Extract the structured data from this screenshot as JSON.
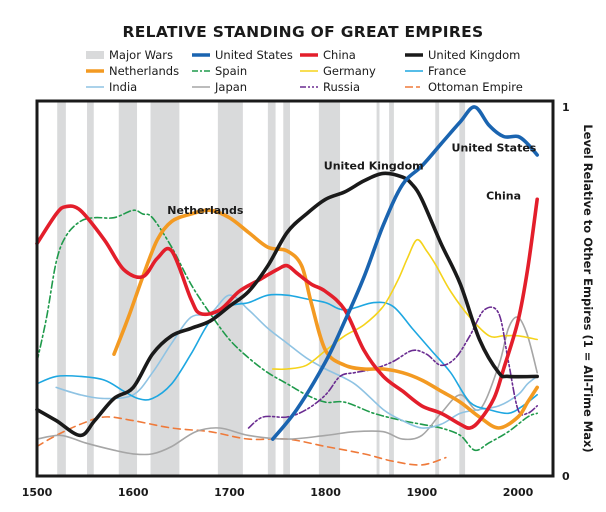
{
  "chart_data": {
    "type": "line",
    "title": "RELATIVE STANDING OF GREAT EMPIRES",
    "xlabel": "",
    "ylabel": "Level Relative to Other Empires (1 = All-Time Max)",
    "xlim": [
      1500,
      2030
    ],
    "ylim": [
      0,
      1
    ],
    "x_ticks": [
      1500,
      1600,
      1700,
      1800,
      1900,
      2000
    ],
    "y_ticks": [
      {
        "value": 0,
        "label": "0"
      },
      {
        "value": 1,
        "label": "1"
      }
    ],
    "y_axis_side": "right",
    "grid": false,
    "legend_position": "top",
    "legend": [
      {
        "label": "Major Wars",
        "kind": "band",
        "color": "#d9dadb"
      },
      {
        "label": "United States",
        "color": "#1a64b0",
        "style": "solid",
        "weight": "thick"
      },
      {
        "label": "China",
        "color": "#e31e2b",
        "style": "solid",
        "weight": "thick"
      },
      {
        "label": "United Kingdom",
        "color": "#1a1a1a",
        "style": "solid",
        "weight": "thick"
      },
      {
        "label": "Netherlands",
        "color": "#f39a22",
        "style": "solid",
        "weight": "thick"
      },
      {
        "label": "Spain",
        "color": "#1f9a4b",
        "style": "dashdot",
        "weight": "thin"
      },
      {
        "label": "Germany",
        "color": "#f5d31b",
        "style": "solid",
        "weight": "thin"
      },
      {
        "label": "France",
        "color": "#1ea7e1",
        "style": "solid",
        "weight": "thin"
      },
      {
        "label": "India",
        "color": "#8fc3e3",
        "style": "solid",
        "weight": "thin"
      },
      {
        "label": "Japan",
        "color": "#a6a6a6",
        "style": "solid",
        "weight": "thin"
      },
      {
        "label": "Russia",
        "color": "#6a2c91",
        "style": "dashdotdot",
        "weight": "thin"
      },
      {
        "label": "Ottoman Empire",
        "color": "#ef7a3a",
        "style": "dashed",
        "weight": "thin"
      }
    ],
    "major_wars": [
      [
        1521,
        1530
      ],
      [
        1552,
        1559
      ],
      [
        1585,
        1604
      ],
      [
        1618,
        1648
      ],
      [
        1688,
        1714
      ],
      [
        1740,
        1748
      ],
      [
        1756,
        1763
      ],
      [
        1793,
        1815
      ],
      [
        1853,
        1856
      ],
      [
        1866,
        1871
      ],
      [
        1914,
        1918
      ],
      [
        1939,
        1945
      ]
    ],
    "annotations": [
      {
        "text": "Netherlands",
        "x": 1675,
        "y": 0.71
      },
      {
        "text": "United Kingdom",
        "x": 1850,
        "y": 0.83
      },
      {
        "text": "United States",
        "x": 1975,
        "y": 0.88
      },
      {
        "text": "China",
        "x": 1985,
        "y": 0.75
      }
    ],
    "series": [
      {
        "name": "Spain",
        "x": [
          1500,
          1510,
          1520,
          1530,
          1545,
          1560,
          1580,
          1600,
          1610,
          1620,
          1640,
          1660,
          1680,
          1700,
          1720,
          1740,
          1760,
          1780,
          1800,
          1820,
          1850,
          1880,
          1900,
          1920,
          1940,
          1955,
          1970,
          1990,
          2010,
          2020
        ],
        "y": [
          0.31,
          0.43,
          0.58,
          0.65,
          0.69,
          0.7,
          0.7,
          0.72,
          0.71,
          0.7,
          0.62,
          0.52,
          0.44,
          0.37,
          0.32,
          0.28,
          0.25,
          0.22,
          0.2,
          0.2,
          0.17,
          0.15,
          0.14,
          0.13,
          0.11,
          0.07,
          0.09,
          0.12,
          0.16,
          0.17
        ]
      },
      {
        "name": "Ottoman Empire",
        "x": [
          1500,
          1520,
          1545,
          1570,
          1600,
          1640,
          1680,
          1720,
          1760,
          1800,
          1840,
          1870,
          1900,
          1925
        ],
        "y": [
          0.08,
          0.11,
          0.14,
          0.16,
          0.15,
          0.13,
          0.12,
          0.1,
          0.1,
          0.08,
          0.06,
          0.04,
          0.03,
          0.05
        ]
      },
      {
        "name": "Japan",
        "x": [
          1500,
          1525,
          1550,
          1580,
          1600,
          1620,
          1640,
          1665,
          1690,
          1720,
          1760,
          1800,
          1830,
          1860,
          1880,
          1900,
          1920,
          1940,
          1960,
          1980,
          1990,
          2000,
          2010,
          2020
        ],
        "y": [
          0.1,
          0.11,
          0.09,
          0.07,
          0.06,
          0.06,
          0.08,
          0.12,
          0.13,
          0.11,
          0.1,
          0.11,
          0.12,
          0.12,
          0.1,
          0.11,
          0.17,
          0.22,
          0.18,
          0.3,
          0.4,
          0.43,
          0.38,
          0.28
        ]
      },
      {
        "name": "India",
        "x": [
          1520,
          1545,
          1570,
          1600,
          1620,
          1640,
          1660,
          1680,
          1700,
          1720,
          1740,
          1760,
          1780,
          1800,
          1830,
          1860,
          1880,
          1900,
          1920,
          1940,
          1960,
          1980,
          2000,
          2010,
          2020
        ],
        "y": [
          0.24,
          0.22,
          0.21,
          0.22,
          0.28,
          0.36,
          0.43,
          0.44,
          0.49,
          0.45,
          0.4,
          0.36,
          0.32,
          0.29,
          0.25,
          0.18,
          0.15,
          0.13,
          0.14,
          0.17,
          0.18,
          0.19,
          0.22,
          0.25,
          0.27
        ]
      },
      {
        "name": "France",
        "x": [
          1500,
          1520,
          1545,
          1570,
          1590,
          1605,
          1620,
          1640,
          1660,
          1680,
          1700,
          1720,
          1740,
          1760,
          1780,
          1800,
          1820,
          1850,
          1870,
          1890,
          1910,
          1930,
          1950,
          1970,
          1990,
          2005,
          2020
        ],
        "y": [
          0.25,
          0.27,
          0.27,
          0.26,
          0.23,
          0.21,
          0.21,
          0.25,
          0.33,
          0.42,
          0.46,
          0.47,
          0.49,
          0.49,
          0.48,
          0.47,
          0.45,
          0.47,
          0.46,
          0.4,
          0.34,
          0.28,
          0.2,
          0.18,
          0.17,
          0.19,
          0.22
        ]
      },
      {
        "name": "Germany",
        "x": [
          1745,
          1760,
          1780,
          1800,
          1820,
          1840,
          1860,
          1875,
          1885,
          1895,
          1905,
          1915,
          1930,
          1950,
          1970,
          1985,
          2000,
          2020
        ],
        "y": [
          0.29,
          0.29,
          0.3,
          0.34,
          0.38,
          0.41,
          0.46,
          0.53,
          0.59,
          0.64,
          0.61,
          0.57,
          0.5,
          0.43,
          0.38,
          0.38,
          0.38,
          0.37
        ]
      },
      {
        "name": "Russia",
        "x": [
          1720,
          1735,
          1760,
          1780,
          1800,
          1815,
          1830,
          1850,
          1870,
          1890,
          1905,
          1920,
          1935,
          1950,
          1965,
          1980,
          1990,
          2000,
          2010,
          2020
        ],
        "y": [
          0.13,
          0.16,
          0.16,
          0.18,
          0.22,
          0.27,
          0.28,
          0.29,
          0.31,
          0.34,
          0.33,
          0.3,
          0.32,
          0.38,
          0.45,
          0.44,
          0.31,
          0.18,
          0.17,
          0.19
        ]
      },
      {
        "name": "Netherlands",
        "x": [
          1580,
          1595,
          1610,
          1625,
          1640,
          1660,
          1680,
          1700,
          1720,
          1740,
          1760,
          1775,
          1785,
          1800,
          1820,
          1840,
          1860,
          1880,
          1900,
          1920,
          1940,
          1960,
          1980,
          2000,
          2010,
          2020
        ],
        "y": [
          0.33,
          0.43,
          0.54,
          0.64,
          0.69,
          0.71,
          0.72,
          0.7,
          0.66,
          0.62,
          0.61,
          0.57,
          0.47,
          0.34,
          0.3,
          0.29,
          0.29,
          0.28,
          0.26,
          0.23,
          0.2,
          0.16,
          0.13,
          0.16,
          0.2,
          0.24
        ]
      },
      {
        "name": "China",
        "x": [
          1500,
          1520,
          1530,
          1545,
          1570,
          1590,
          1610,
          1625,
          1640,
          1660,
          1670,
          1690,
          1710,
          1730,
          1750,
          1760,
          1770,
          1785,
          1800,
          1820,
          1840,
          1860,
          1880,
          1900,
          1920,
          1940,
          1950,
          1960,
          1975,
          1985,
          2000,
          2010,
          2020
        ],
        "y": [
          0.63,
          0.71,
          0.73,
          0.72,
          0.64,
          0.56,
          0.54,
          0.59,
          0.61,
          0.48,
          0.44,
          0.45,
          0.5,
          0.53,
          0.56,
          0.57,
          0.55,
          0.52,
          0.5,
          0.45,
          0.34,
          0.27,
          0.23,
          0.19,
          0.17,
          0.14,
          0.13,
          0.15,
          0.21,
          0.29,
          0.42,
          0.56,
          0.75
        ]
      },
      {
        "name": "United Kingdom",
        "x": [
          1500,
          1520,
          1545,
          1560,
          1580,
          1600,
          1620,
          1640,
          1660,
          1680,
          1700,
          1720,
          1740,
          1760,
          1780,
          1800,
          1820,
          1840,
          1860,
          1880,
          1890,
          1900,
          1920,
          1940,
          1960,
          1980,
          1990,
          2020
        ],
        "y": [
          0.18,
          0.15,
          0.11,
          0.15,
          0.21,
          0.24,
          0.33,
          0.38,
          0.4,
          0.42,
          0.46,
          0.5,
          0.57,
          0.66,
          0.71,
          0.75,
          0.77,
          0.8,
          0.82,
          0.81,
          0.79,
          0.75,
          0.63,
          0.52,
          0.37,
          0.28,
          0.27,
          0.27
        ]
      },
      {
        "name": "United States",
        "x": [
          1745,
          1770,
          1800,
          1820,
          1840,
          1860,
          1880,
          1900,
          1920,
          1940,
          1955,
          1970,
          1985,
          2000,
          2010,
          2020
        ],
        "y": [
          0.1,
          0.18,
          0.31,
          0.42,
          0.54,
          0.68,
          0.79,
          0.84,
          0.9,
          0.96,
          1.0,
          0.95,
          0.92,
          0.92,
          0.9,
          0.87
        ]
      }
    ]
  }
}
